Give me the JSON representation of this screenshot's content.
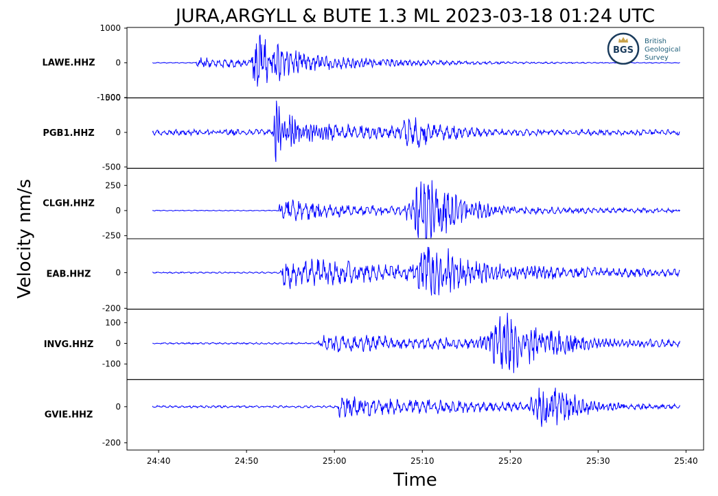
{
  "figure": {
    "title": "JURA,ARGYLL & BUTE 1.3 ML   2023-03-18 01:24 UTC",
    "ylabel": "Velocity nm/s",
    "xlabel": "Time",
    "trace_color": "#0000ff",
    "logo": {
      "initials": "BGS",
      "lines": [
        "British",
        "Geological",
        "Survey"
      ],
      "ring_color": "#1a3b5c",
      "text_color": "#1f5f7a",
      "crown_color": "#c9a24a"
    }
  },
  "chart_data": {
    "type": "line",
    "x_axis": {
      "unit": "time (mm:ss after 01:00 UTC)",
      "range": [
        "24:36.4",
        "25:42.0"
      ],
      "ticks": [
        "24:40",
        "24:50",
        "25:00",
        "25:10",
        "25:20",
        "25:30",
        "25:40"
      ],
      "trace_start": "24:39.3",
      "trace_end": "25:39.3"
    },
    "panels": [
      {
        "station": "LAWE.HHZ",
        "ylim": [
          -1010,
          1020
        ],
        "yticks": [
          {
            "value": 1000,
            "label": "1000"
          },
          {
            "value": 0,
            "label": "0"
          },
          {
            "value": -1000,
            "label": "-1000"
          }
        ],
        "noise": 12,
        "arrivals": [
          {
            "time": "24:44.2",
            "amp": 160,
            "decay": 12
          },
          {
            "time": "24:50.5",
            "amp": 900,
            "decay": 5,
            "period": 0.5
          },
          {
            "time": "24:52.5",
            "amp": 320,
            "decay": 12
          }
        ]
      },
      {
        "station": "PGB1.HHZ",
        "ylim": [
          -520,
          500
        ],
        "yticks": [
          {
            "value": 500,
            "label": "500"
          },
          {
            "value": 0,
            "label": "0"
          },
          {
            "value": -500,
            "label": "-500"
          }
        ],
        "noise": 40,
        "arrivals": [
          {
            "time": "24:53.0",
            "amp": 490,
            "decay": 2.5,
            "period": 0.3
          },
          {
            "time": "24:53.5",
            "amp": 140,
            "decay": 25
          },
          {
            "time": "25:05.5",
            "amp": 230,
            "decay": 6,
            "rise": 3
          }
        ]
      },
      {
        "station": "CLGH.HHZ",
        "ylim": [
          -280,
          420
        ],
        "yticks": [
          {
            "value": 250,
            "label": "250"
          },
          {
            "value": 0,
            "label": "0"
          },
          {
            "value": -250,
            "label": "-250"
          }
        ],
        "noise": 4,
        "arrivals": [
          {
            "time": "24:53.6",
            "amp": 120,
            "decay": 9
          },
          {
            "time": "24:56",
            "amp": 60,
            "decay": 40
          },
          {
            "time": "25:07.5",
            "amp": 380,
            "decay": 4,
            "rise": 3,
            "period": 0.45
          }
        ]
      },
      {
        "station": "EAB.HHZ",
        "ylim": [
          -205,
          190
        ],
        "yticks": [
          {
            "value": 0,
            "label": "0"
          },
          {
            "value": -200,
            "label": "-200"
          }
        ],
        "noise": 4,
        "arrivals": [
          {
            "time": "24:53.8",
            "amp": 90,
            "decay": 18,
            "rise": 0.5
          },
          {
            "time": "25:08",
            "amp": 170,
            "decay": 6,
            "rise": 3,
            "period": 0.45
          },
          {
            "time": "25:12",
            "amp": 55,
            "decay": 25
          }
        ]
      },
      {
        "station": "INVG.HHZ",
        "ylim": [
          -175,
          165
        ],
        "yticks": [
          {
            "value": 100,
            "label": "100"
          },
          {
            "value": 0,
            "label": "0"
          },
          {
            "value": -100,
            "label": "-100"
          }
        ],
        "noise": 4,
        "arrivals": [
          {
            "time": "24:58",
            "amp": 45,
            "decay": 25,
            "rise": 0.8
          },
          {
            "time": "25:15.5",
            "amp": 150,
            "decay": 6,
            "rise": 4,
            "period": 0.45
          },
          {
            "time": "25:20",
            "amp": 35,
            "decay": 25
          }
        ]
      },
      {
        "station": "GVIE.HHZ",
        "ylim": [
          -240,
          150
        ],
        "yticks": [
          {
            "value": 0,
            "label": "0"
          },
          {
            "value": -200,
            "label": "-200"
          }
        ],
        "noise": 6,
        "arrivals": [
          {
            "time": "25:00.3",
            "amp": 55,
            "decay": 25
          },
          {
            "time": "25:01.5",
            "amp": 70,
            "decay": 2
          },
          {
            "time": "25:21.5",
            "amp": 140,
            "decay": 4,
            "rise": 2.5,
            "period": 0.45
          },
          {
            "time": "25:24",
            "amp": 35,
            "decay": 15
          }
        ]
      }
    ]
  }
}
